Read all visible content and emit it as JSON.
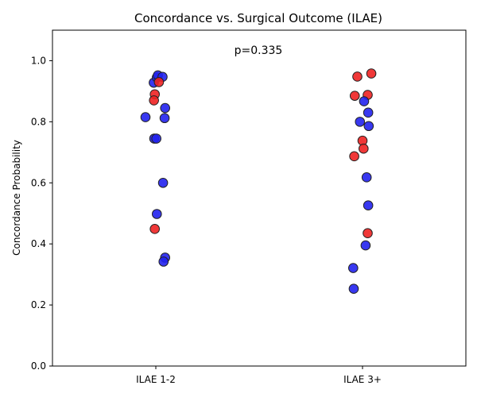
{
  "chart_data": {
    "type": "scatter",
    "title": "Concordance vs. Surgical Outcome (ILAE)",
    "xlabel": "",
    "ylabel": "Concordance Probability",
    "categories": [
      "ILAE 1-2",
      "ILAE 3+"
    ],
    "ylim": [
      0.0,
      1.1
    ],
    "yticks": [
      "0.0",
      "0.2",
      "0.4",
      "0.6",
      "0.8",
      "1.0"
    ],
    "grid": false,
    "annotation": "p=0.335",
    "colors": {
      "red": "#ee2222",
      "blue": "#2222ee",
      "edge": "#222222"
    },
    "points": [
      {
        "category": "ILAE 1-2",
        "jitter": -0.1,
        "y": 0.815,
        "color": "blue"
      },
      {
        "category": "ILAE 1-2",
        "jitter": -0.02,
        "y": 0.928,
        "color": "blue"
      },
      {
        "category": "ILAE 1-2",
        "jitter": 0.01,
        "y": 0.945,
        "color": "blue"
      },
      {
        "category": "ILAE 1-2",
        "jitter": 0.02,
        "y": 0.952,
        "color": "blue"
      },
      {
        "category": "ILAE 1-2",
        "jitter": 0.065,
        "y": 0.947,
        "color": "blue"
      },
      {
        "category": "ILAE 1-2",
        "jitter": 0.03,
        "y": 0.93,
        "color": "red"
      },
      {
        "category": "ILAE 1-2",
        "jitter": -0.01,
        "y": 0.89,
        "color": "red"
      },
      {
        "category": "ILAE 1-2",
        "jitter": -0.018,
        "y": 0.87,
        "color": "red"
      },
      {
        "category": "ILAE 1-2",
        "jitter": 0.09,
        "y": 0.845,
        "color": "blue"
      },
      {
        "category": "ILAE 1-2",
        "jitter": 0.085,
        "y": 0.812,
        "color": "blue"
      },
      {
        "category": "ILAE 1-2",
        "jitter": -0.015,
        "y": 0.745,
        "color": "blue"
      },
      {
        "category": "ILAE 1-2",
        "jitter": 0.005,
        "y": 0.745,
        "color": "blue"
      },
      {
        "category": "ILAE 1-2",
        "jitter": 0.07,
        "y": 0.6,
        "color": "blue"
      },
      {
        "category": "ILAE 1-2",
        "jitter": 0.01,
        "y": 0.498,
        "color": "blue"
      },
      {
        "category": "ILAE 1-2",
        "jitter": -0.01,
        "y": 0.449,
        "color": "red"
      },
      {
        "category": "ILAE 1-2",
        "jitter": 0.09,
        "y": 0.355,
        "color": "blue"
      },
      {
        "category": "ILAE 1-2",
        "jitter": 0.075,
        "y": 0.342,
        "color": "blue"
      },
      {
        "category": "ILAE 3+",
        "jitter": 0.085,
        "y": 0.958,
        "color": "red"
      },
      {
        "category": "ILAE 3+",
        "jitter": -0.05,
        "y": 0.948,
        "color": "red"
      },
      {
        "category": "ILAE 3+",
        "jitter": -0.075,
        "y": 0.885,
        "color": "red"
      },
      {
        "category": "ILAE 3+",
        "jitter": 0.05,
        "y": 0.888,
        "color": "red"
      },
      {
        "category": "ILAE 3+",
        "jitter": 0.015,
        "y": 0.867,
        "color": "blue"
      },
      {
        "category": "ILAE 3+",
        "jitter": 0.055,
        "y": 0.83,
        "color": "blue"
      },
      {
        "category": "ILAE 3+",
        "jitter": -0.025,
        "y": 0.8,
        "color": "blue"
      },
      {
        "category": "ILAE 3+",
        "jitter": 0.06,
        "y": 0.786,
        "color": "blue"
      },
      {
        "category": "ILAE 3+",
        "jitter": 0.0,
        "y": 0.738,
        "color": "red"
      },
      {
        "category": "ILAE 3+",
        "jitter": 0.01,
        "y": 0.712,
        "color": "red"
      },
      {
        "category": "ILAE 3+",
        "jitter": -0.08,
        "y": 0.687,
        "color": "red"
      },
      {
        "category": "ILAE 3+",
        "jitter": 0.04,
        "y": 0.618,
        "color": "blue"
      },
      {
        "category": "ILAE 3+",
        "jitter": 0.055,
        "y": 0.526,
        "color": "blue"
      },
      {
        "category": "ILAE 3+",
        "jitter": 0.05,
        "y": 0.435,
        "color": "red"
      },
      {
        "category": "ILAE 3+",
        "jitter": 0.03,
        "y": 0.395,
        "color": "blue"
      },
      {
        "category": "ILAE 3+",
        "jitter": -0.09,
        "y": 0.321,
        "color": "blue"
      },
      {
        "category": "ILAE 3+",
        "jitter": -0.085,
        "y": 0.253,
        "color": "blue"
      }
    ]
  }
}
